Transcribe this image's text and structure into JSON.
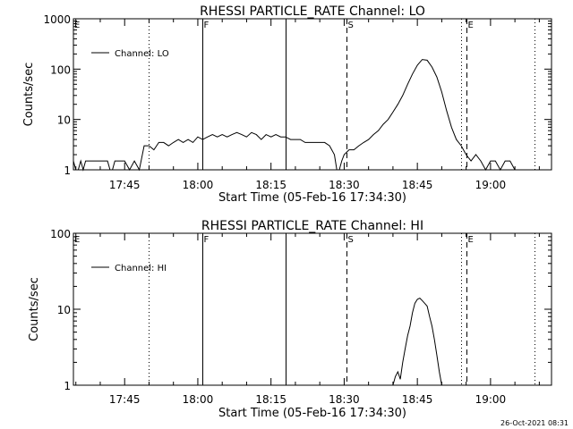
{
  "chart_data": [
    {
      "type": "line",
      "title": "RHESSI PARTICLE_RATE Channel: LO",
      "xlabel": "Start Time (05-Feb-16 17:34:30)",
      "ylabel": "Counts/sec",
      "scale": {
        "y": "log"
      },
      "xlim": [
        "17:34:30",
        "19:12:30"
      ],
      "ylim": [
        1,
        1000
      ],
      "xticks": [
        "17:45",
        "18:00",
        "18:15",
        "18:30",
        "18:45",
        "19:00"
      ],
      "yticks": [
        "1",
        "10",
        "100",
        "1000"
      ],
      "legend": {
        "position": "top-left"
      },
      "series": [
        {
          "name": "Channel: LO",
          "x": [
            "17:34:30",
            "17:35:00",
            "17:35:30",
            "17:36:00",
            "17:36:30",
            "17:37:00",
            "17:41:30",
            "17:42:00",
            "17:42:30",
            "17:43:00",
            "17:44:00",
            "17:45:00",
            "17:46:00",
            "17:47:00",
            "17:48:00",
            "17:49:00",
            "17:50:00",
            "17:51:00",
            "17:52:00",
            "17:53:00",
            "17:54:00",
            "17:55:00",
            "17:56:00",
            "17:57:00",
            "17:58:00",
            "17:59:00",
            "18:00:00",
            "18:01:00",
            "18:02:00",
            "18:03:00",
            "18:04:00",
            "18:05:00",
            "18:06:00",
            "18:07:00",
            "18:08:00",
            "18:09:00",
            "18:10:00",
            "18:11:00",
            "18:12:00",
            "18:13:00",
            "18:14:00",
            "18:15:00",
            "18:16:00",
            "18:17:00",
            "18:18:00",
            "18:19:00",
            "18:20:00",
            "18:21:00",
            "18:22:00",
            "18:23:00",
            "18:24:00",
            "18:25:00",
            "18:26:00",
            "18:27:00",
            "18:28:00",
            "18:28:30",
            "18:29:00",
            "18:29:30",
            "18:30:00",
            "18:31:00",
            "18:32:00",
            "18:33:00",
            "18:34:00",
            "18:35:00",
            "18:36:00",
            "18:37:00",
            "18:38:00",
            "18:39:00",
            "18:40:00",
            "18:41:00",
            "18:42:00",
            "18:43:00",
            "18:44:00",
            "18:45:00",
            "18:46:00",
            "18:47:00",
            "18:48:00",
            "18:49:00",
            "18:50:00",
            "18:51:00",
            "18:52:00",
            "18:53:00",
            "18:54:00",
            "18:55:00",
            "18:56:00",
            "18:57:00",
            "18:58:00",
            "18:59:00",
            "19:00:00",
            "19:01:00",
            "19:02:00",
            "19:03:00",
            "19:04:00",
            "19:05:00",
            "19:06:00",
            "19:07:00"
          ],
          "y": [
            1.5,
            1,
            1,
            1.5,
            1,
            1.5,
            1.5,
            1,
            1,
            1.5,
            1.5,
            1.5,
            1,
            1.5,
            1,
            3,
            3,
            2.5,
            3.5,
            3.5,
            3,
            3.5,
            4,
            3.5,
            4,
            3.5,
            4.5,
            4,
            4.5,
            5,
            4.5,
            5,
            4.5,
            5,
            5.5,
            5,
            4.5,
            5.5,
            5,
            4,
            5,
            4.5,
            5,
            4.5,
            4.5,
            4,
            4,
            4,
            3.5,
            3.5,
            3.5,
            3.5,
            3.5,
            3,
            2,
            1,
            1,
            1.5,
            2,
            2.5,
            2.5,
            3,
            3.5,
            4,
            5,
            6,
            8,
            10,
            14,
            20,
            30,
            50,
            80,
            120,
            155,
            150,
            110,
            70,
            35,
            15,
            7,
            4,
            3,
            2,
            1.5,
            2,
            1.5,
            1,
            1.5,
            1.5,
            1,
            1.5,
            1.5,
            1,
            1,
            1
          ]
        }
      ],
      "markers": [
        {
          "time": "17:50:00",
          "label": "",
          "style": "dotted"
        },
        {
          "time": "18:01:00",
          "label": "F",
          "style": "solid"
        },
        {
          "time": "18:18:00",
          "label": "",
          "style": "solid"
        },
        {
          "time": "18:30:30",
          "label": "S",
          "style": "dashed"
        },
        {
          "time": "18:54:00",
          "label": "",
          "style": "dotted"
        },
        {
          "time": "18:55:00",
          "label": "E",
          "style": "dashed"
        },
        {
          "time": "19:09:00",
          "label": "",
          "style": "dotted"
        }
      ],
      "corner_label": "E"
    },
    {
      "type": "line",
      "title": "RHESSI PARTICLE_RATE Channel: HI",
      "xlabel": "Start Time (05-Feb-16 17:34:30)",
      "ylabel": "Counts/sec",
      "scale": {
        "y": "log"
      },
      "xlim": [
        "17:34:30",
        "19:12:30"
      ],
      "ylim": [
        1,
        100
      ],
      "xticks": [
        "17:45",
        "18:00",
        "18:15",
        "18:30",
        "18:45",
        "19:00"
      ],
      "yticks": [
        "1",
        "10",
        "100"
      ],
      "legend": {
        "position": "top-left"
      },
      "series": [
        {
          "name": "Channel: HI",
          "x": [
            "18:40:00",
            "18:40:30",
            "18:41:00",
            "18:41:30",
            "18:42:00",
            "18:42:30",
            "18:43:00",
            "18:43:30",
            "18:44:00",
            "18:44:30",
            "18:45:00",
            "18:45:30",
            "18:46:00",
            "18:46:30",
            "18:47:00",
            "18:47:30",
            "18:48:00",
            "18:48:30",
            "18:49:00",
            "18:49:30",
            "18:50:00"
          ],
          "y": [
            1,
            1.3,
            1.5,
            1.2,
            2,
            3,
            4.5,
            6,
            9,
            12,
            13.5,
            14,
            13,
            12,
            11,
            8,
            6,
            4,
            2.5,
            1.5,
            1
          ]
        }
      ],
      "markers": [
        {
          "time": "17:50:00",
          "label": "",
          "style": "dotted"
        },
        {
          "time": "18:01:00",
          "label": "F",
          "style": "solid"
        },
        {
          "time": "18:18:00",
          "label": "",
          "style": "solid"
        },
        {
          "time": "18:30:30",
          "label": "S",
          "style": "dashed"
        },
        {
          "time": "18:54:00",
          "label": "",
          "style": "dotted"
        },
        {
          "time": "18:55:00",
          "label": "E",
          "style": "dashed"
        },
        {
          "time": "19:09:00",
          "label": "",
          "style": "dotted"
        }
      ],
      "corner_label": "E"
    }
  ],
  "timestamp": "26-Oct-2021 08:31"
}
